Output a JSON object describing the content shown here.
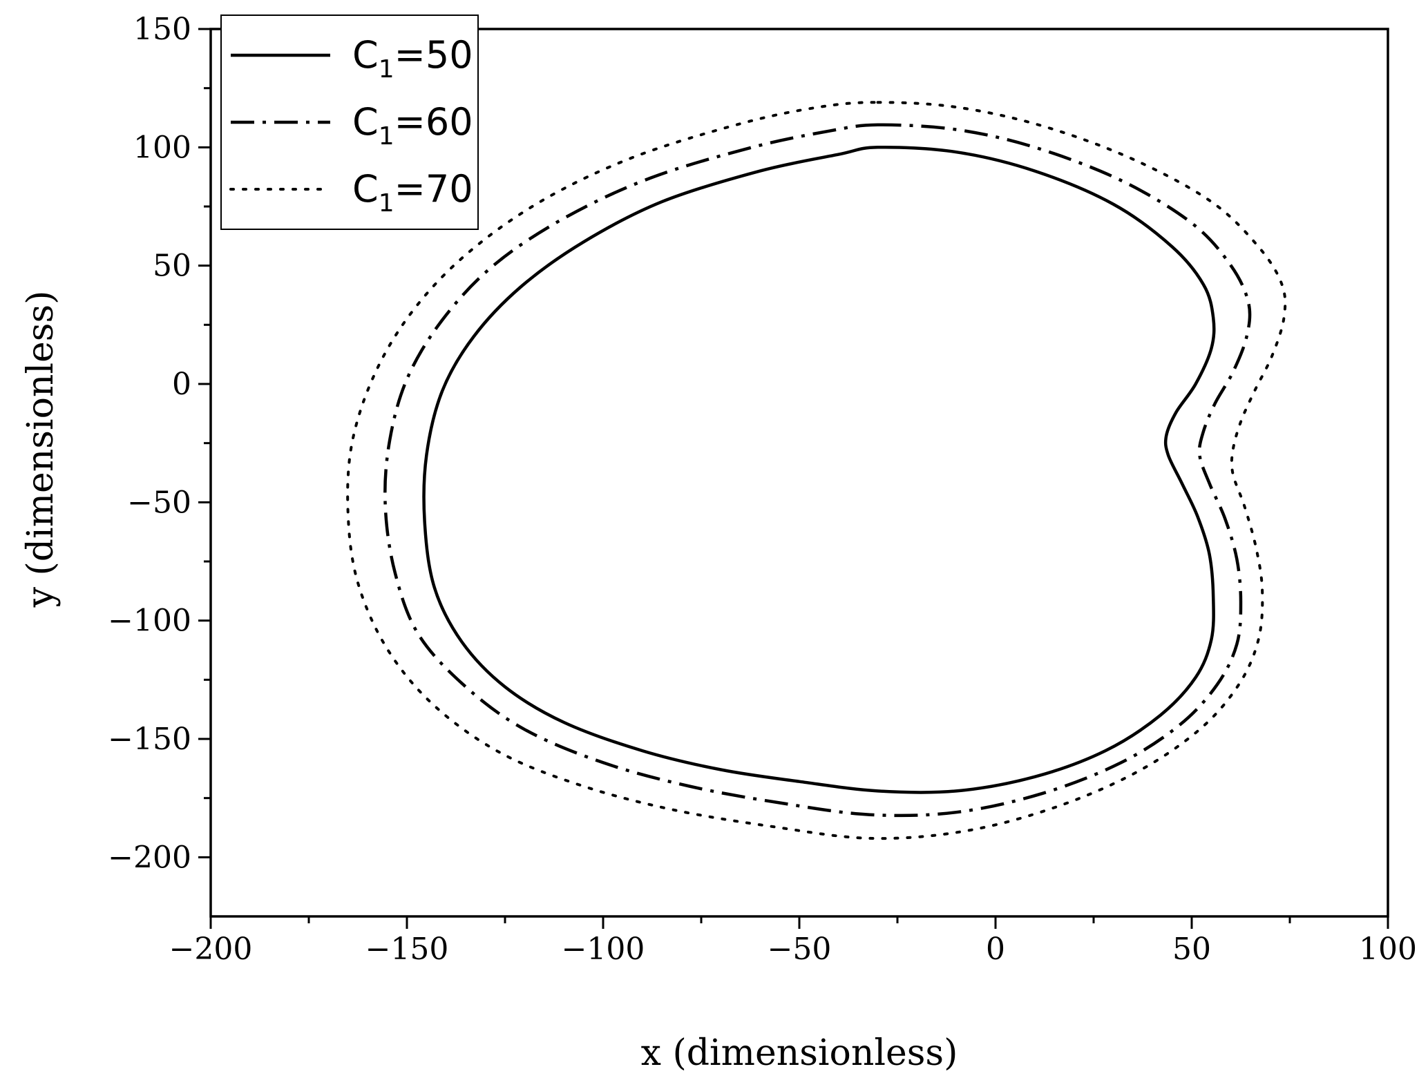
{
  "chart_data": {
    "type": "line",
    "xlabel": "x (dimensionless)",
    "ylabel": "y (dimensionless)",
    "xlim": [
      -200,
      100
    ],
    "ylim": [
      -225,
      150
    ],
    "xticks": [
      -200,
      -150,
      -100,
      -50,
      0,
      50,
      100
    ],
    "yticks": [
      150,
      100,
      50,
      0,
      -50,
      -100,
      -150,
      -200
    ],
    "xtick_labels": [
      "−200",
      "−150",
      "−100",
      "−50",
      "0",
      "50",
      "100"
    ],
    "ytick_labels": [
      "150",
      "100",
      "50",
      "0",
      "−50",
      "−100",
      "−150",
      "−200"
    ],
    "grid": false,
    "legend_position": "top-left",
    "series": [
      {
        "name": "C1=50",
        "label_main": "C",
        "label_sub": "1",
        "label_rest": "=50",
        "style": "solid",
        "points": [
          [
            -30,
            100
          ],
          [
            -10,
            98
          ],
          [
            10,
            90
          ],
          [
            30,
            76
          ],
          [
            45,
            58
          ],
          [
            53,
            42
          ],
          [
            55.5,
            28
          ],
          [
            55,
            15
          ],
          [
            51,
            0
          ],
          [
            46,
            -12
          ],
          [
            43.5,
            -22
          ],
          [
            44,
            -30
          ],
          [
            47.5,
            -42
          ],
          [
            51.5,
            -56
          ],
          [
            54.5,
            -72
          ],
          [
            55.5,
            -90
          ],
          [
            55,
            -108
          ],
          [
            51,
            -124
          ],
          [
            42,
            -140
          ],
          [
            28,
            -155
          ],
          [
            10,
            -166
          ],
          [
            -10,
            -172
          ],
          [
            -30,
            -172
          ],
          [
            -50,
            -168
          ],
          [
            -70,
            -163
          ],
          [
            -90,
            -155
          ],
          [
            -110,
            -143
          ],
          [
            -125,
            -128
          ],
          [
            -136,
            -109
          ],
          [
            -143,
            -86
          ],
          [
            -145.5,
            -58
          ],
          [
            -145,
            -30
          ],
          [
            -141,
            -3
          ],
          [
            -133,
            20
          ],
          [
            -121,
            41
          ],
          [
            -105,
            60
          ],
          [
            -85,
            77
          ],
          [
            -60,
            90
          ],
          [
            -40,
            97
          ],
          [
            -30,
            100
          ]
        ]
      },
      {
        "name": "C1=60",
        "label_main": "C",
        "label_sub": "1",
        "label_rest": "=60",
        "style": "dashdot",
        "points": [
          [
            -30,
            109.5
          ],
          [
            -10,
            107.5
          ],
          [
            10,
            100
          ],
          [
            32,
            86
          ],
          [
            50,
            68
          ],
          [
            60,
            50
          ],
          [
            64.5,
            34
          ],
          [
            64,
            20
          ],
          [
            60.5,
            5
          ],
          [
            56,
            -8
          ],
          [
            53,
            -20
          ],
          [
            52,
            -30
          ],
          [
            54.5,
            -42
          ],
          [
            58.5,
            -57
          ],
          [
            61.5,
            -74
          ],
          [
            62.5,
            -92
          ],
          [
            61.5,
            -110
          ],
          [
            56.5,
            -127
          ],
          [
            47,
            -144
          ],
          [
            32,
            -160
          ],
          [
            12,
            -173
          ],
          [
            -10,
            -181
          ],
          [
            -32,
            -182
          ],
          [
            -55,
            -177
          ],
          [
            -78,
            -170
          ],
          [
            -100,
            -160
          ],
          [
            -120,
            -146
          ],
          [
            -135,
            -128
          ],
          [
            -147,
            -106
          ],
          [
            -153,
            -80
          ],
          [
            -155.5,
            -52
          ],
          [
            -154.5,
            -25
          ],
          [
            -150,
            2
          ],
          [
            -141,
            27
          ],
          [
            -128,
            50
          ],
          [
            -110,
            70
          ],
          [
            -88,
            87
          ],
          [
            -62,
            100
          ],
          [
            -42,
            107
          ],
          [
            -30,
            109.5
          ]
        ]
      },
      {
        "name": "C1=70",
        "label_main": "C",
        "label_sub": "1",
        "label_rest": "=70",
        "style": "dotted",
        "points": [
          [
            -30,
            119
          ],
          [
            -10,
            117
          ],
          [
            12,
            109
          ],
          [
            35,
            95
          ],
          [
            55,
            77
          ],
          [
            67,
            58
          ],
          [
            73,
            42
          ],
          [
            73.5,
            28
          ],
          [
            70.5,
            12
          ],
          [
            66,
            -3
          ],
          [
            62.5,
            -16
          ],
          [
            60.5,
            -28
          ],
          [
            60.5,
            -38
          ],
          [
            63.5,
            -52
          ],
          [
            66.5,
            -70
          ],
          [
            68,
            -88
          ],
          [
            67,
            -108
          ],
          [
            62,
            -127
          ],
          [
            52,
            -146
          ],
          [
            36,
            -164
          ],
          [
            15,
            -179
          ],
          [
            -8,
            -189
          ],
          [
            -32,
            -192
          ],
          [
            -57,
            -187
          ],
          [
            -82,
            -180
          ],
          [
            -105,
            -170
          ],
          [
            -126,
            -156
          ],
          [
            -143,
            -136
          ],
          [
            -155,
            -112
          ],
          [
            -162.5,
            -84
          ],
          [
            -165,
            -55
          ],
          [
            -164,
            -25
          ],
          [
            -158,
            5
          ],
          [
            -148,
            32
          ],
          [
            -134,
            56
          ],
          [
            -115,
            78
          ],
          [
            -92,
            96
          ],
          [
            -65,
            110
          ],
          [
            -45,
            117
          ],
          [
            -30,
            119
          ]
        ]
      }
    ]
  }
}
